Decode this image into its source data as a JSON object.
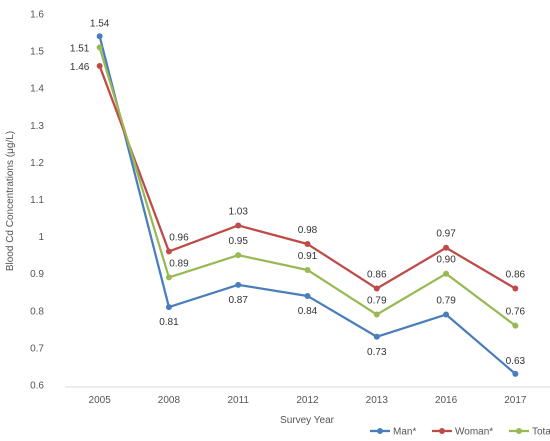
{
  "chart_data": {
    "type": "line",
    "categories": [
      "2005",
      "2008",
      "2011",
      "2012",
      "2013",
      "2016",
      "2017"
    ],
    "xlabel": "Survey Year",
    "ylabel": "Blood Cd Concentrations (μg/L)",
    "ylim": [
      0.6,
      1.6
    ],
    "yticks": [
      "0.6",
      "0.7",
      "0.8",
      "0.9",
      "1",
      "1.1",
      "1.2",
      "1.3",
      "1.4",
      "1.5",
      "1.6"
    ],
    "grid": false,
    "legend": "bottom-right",
    "series": [
      {
        "name": "Man*",
        "color": "#4a7ebb",
        "values": [
          1.54,
          0.81,
          0.87,
          0.84,
          0.73,
          0.79,
          0.63
        ],
        "labels": [
          "1.54",
          "0.81",
          "0.87",
          "0.84",
          "0.73",
          "0.79",
          "0.63"
        ]
      },
      {
        "name": "Woman*",
        "color": "#be4b48",
        "values": [
          1.46,
          0.96,
          1.03,
          0.98,
          0.86,
          0.97,
          0.86
        ],
        "labels": [
          "1.46",
          "0.96",
          "1.03",
          "0.98",
          "0.86",
          "0.97",
          "0.86"
        ]
      },
      {
        "name": "Total*",
        "color": "#98b954",
        "values": [
          1.51,
          0.89,
          0.95,
          0.91,
          0.79,
          0.9,
          0.76
        ],
        "labels": [
          "1.51",
          "0.89",
          "0.95",
          "0.91",
          "0.79",
          "0.90",
          "0.76"
        ]
      }
    ]
  }
}
